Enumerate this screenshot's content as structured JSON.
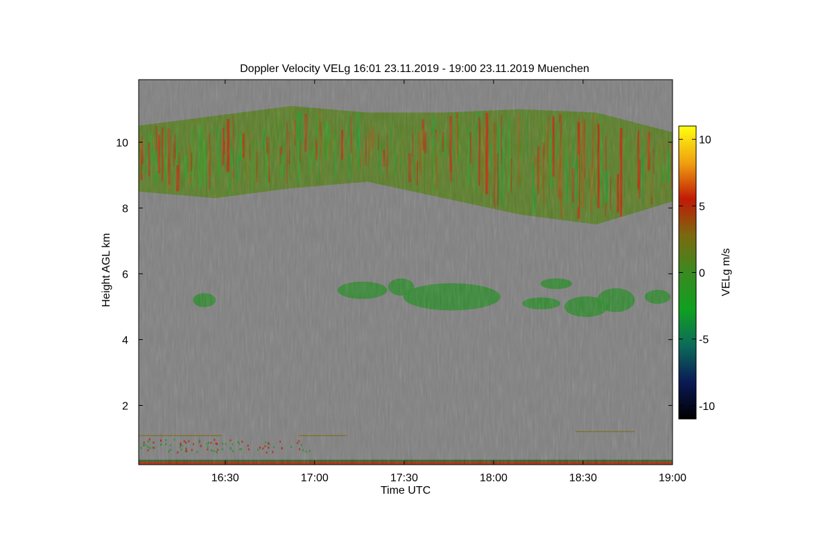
{
  "chart_data": {
    "type": "heatmap",
    "title": "Doppler Velocity VELg   16:01 23.11.2019 - 19:00 23.11.2019 Muenchen",
    "xlabel": "Time UTC",
    "ylabel": "Height AGL km",
    "x_range": [
      "16:01",
      "19:00"
    ],
    "ylim": [
      0.2,
      11.9
    ],
    "x_ticks": [
      {
        "label": "16:30",
        "minutes": 29
      },
      {
        "label": "17:00",
        "minutes": 59
      },
      {
        "label": "17:30",
        "minutes": 89
      },
      {
        "label": "18:00",
        "minutes": 119
      },
      {
        "label": "18:30",
        "minutes": 149
      },
      {
        "label": "19:00",
        "minutes": 179
      }
    ],
    "y_ticks": [
      2,
      4,
      6,
      8,
      10
    ],
    "colorbar": {
      "label": "VELg m/s",
      "range": [
        -11,
        11
      ],
      "ticks": [
        10,
        5,
        0,
        -5,
        -10
      ],
      "colors": [
        "#000000",
        "#0a1a55",
        "#0c6a5a",
        "#10a020",
        "#3a8a20",
        "#7a6a10",
        "#c01a05",
        "#f0a010",
        "#ffff10"
      ]
    },
    "background_color": "#808080",
    "regions": [
      {
        "name": "high cirrus layer",
        "time_start": "16:01",
        "time_end": "19:00",
        "base_km": [
          8.5,
          8.3,
          8.6,
          8.8,
          8.3,
          7.8,
          7.5,
          8.2
        ],
        "top_km": [
          10.5,
          10.8,
          11.1,
          10.9,
          10.9,
          11.0,
          10.9,
          10.3
        ]
      },
      {
        "name": "mid-level patches",
        "base_km": 4.8,
        "top_km": 5.9
      },
      {
        "name": "near-surface clutter",
        "base_km": 0.2,
        "top_km": 1.5
      }
    ]
  }
}
